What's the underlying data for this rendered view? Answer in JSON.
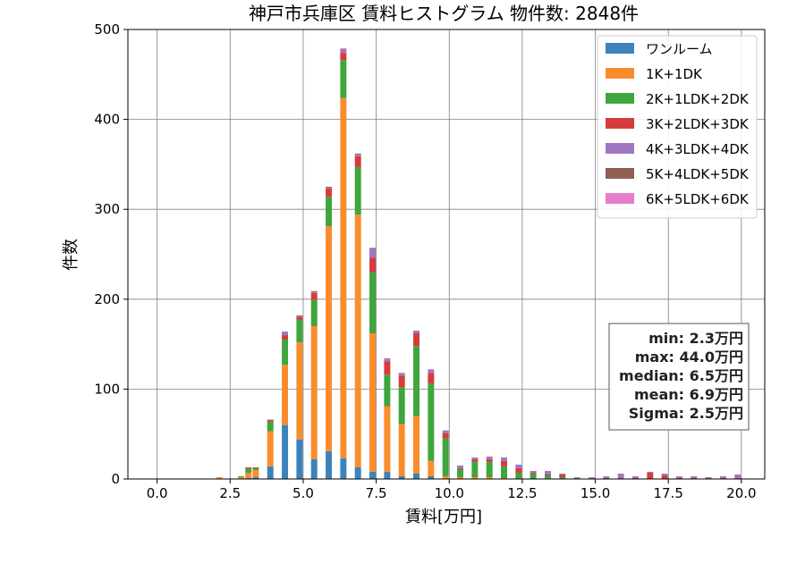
{
  "chart_data": {
    "type": "bar",
    "stacked": true,
    "title": "神戸市兵庫区 賃料ヒストグラム 物件数: 2848件",
    "xlabel": "賃料[万円]",
    "ylabel": "件数",
    "xlim": [
      -1.0,
      20.8
    ],
    "ylim": [
      0,
      500
    ],
    "xticks": [
      0,
      2.5,
      5,
      7.5,
      10,
      12.5,
      15,
      17.5,
      20
    ],
    "xtick_labels": [
      "0.0",
      "2.5",
      "5.0",
      "7.5",
      "10.0",
      "12.5",
      "15.0",
      "17.5",
      "20.0"
    ],
    "yticks": [
      0,
      100,
      200,
      300,
      400,
      500
    ],
    "ytick_labels": [
      "0",
      "100",
      "200",
      "300",
      "400",
      "500"
    ],
    "grid": true,
    "legend_position": "top-right",
    "bin_width": 0.25,
    "x": [
      2.0,
      2.5,
      2.75,
      3.0,
      3.25,
      3.5,
      3.75,
      4.0,
      4.25,
      4.5,
      4.75,
      5.0,
      5.25,
      5.5,
      5.75,
      6.0,
      6.25,
      6.5,
      6.75,
      7.0,
      7.25,
      7.5,
      7.75,
      8.0,
      8.25,
      8.5,
      8.75,
      9.0,
      9.25,
      9.5,
      9.75,
      10.0,
      10.25,
      10.5,
      10.75,
      11.0,
      11.25,
      11.5,
      11.75,
      12.0,
      12.25,
      12.5,
      12.75,
      13.0,
      13.25,
      13.5,
      13.75,
      14.0,
      14.25,
      14.5,
      14.75,
      15.0,
      15.25,
      15.5,
      15.75,
      16.0,
      16.25,
      16.5,
      16.75,
      17.0,
      17.25,
      17.5,
      17.75,
      18.0,
      18.25,
      18.5,
      18.75,
      19.0,
      19.25,
      19.5,
      19.75,
      20.0
    ],
    "series": [
      {
        "name": "ワンルーム",
        "color": "#3b83bd",
        "values": [
          0,
          0,
          0,
          1,
          2,
          0,
          14,
          0,
          60,
          0,
          44,
          0,
          22,
          0,
          31,
          0,
          23,
          0,
          13,
          0,
          8,
          0,
          8,
          0,
          3,
          0,
          6,
          0,
          3,
          0,
          0,
          0,
          0,
          0,
          0,
          0,
          0,
          0,
          0,
          0,
          0,
          0,
          0,
          0,
          0,
          0,
          0,
          0,
          0,
          0,
          0,
          0,
          0,
          0,
          0,
          0,
          0,
          0,
          0,
          0,
          0,
          0,
          0,
          0,
          0,
          0,
          0,
          0,
          0,
          0,
          0,
          0
        ]
      },
      {
        "name": "1K+1DK",
        "color": "#fb8c2c",
        "values": [
          2,
          0,
          2,
          6,
          8,
          0,
          39,
          0,
          67,
          0,
          108,
          0,
          148,
          0,
          250,
          0,
          401,
          0,
          281,
          0,
          154,
          0,
          73,
          0,
          58,
          0,
          64,
          0,
          17,
          0,
          3,
          0,
          2,
          0,
          2,
          0,
          2,
          0,
          1,
          0,
          0,
          0,
          0,
          0,
          0,
          0,
          0,
          0,
          0,
          0,
          0,
          0,
          0,
          0,
          0,
          0,
          0,
          0,
          0,
          0,
          0,
          0,
          0,
          0,
          0,
          0,
          0,
          0,
          0,
          0,
          0,
          0
        ]
      },
      {
        "name": "2K+1LDK+2DK",
        "color": "#3fa53d",
        "values": [
          0,
          0,
          1,
          5,
          2,
          0,
          11,
          0,
          28,
          0,
          25,
          0,
          29,
          0,
          33,
          0,
          42,
          0,
          53,
          0,
          68,
          0,
          35,
          0,
          41,
          0,
          78,
          0,
          86,
          0,
          42,
          0,
          9,
          0,
          17,
          0,
          17,
          0,
          13,
          0,
          7,
          0,
          6,
          0,
          4,
          0,
          2,
          0,
          1,
          0,
          0,
          0,
          0,
          0,
          0,
          0,
          0,
          0,
          0,
          0,
          0,
          0,
          0,
          0,
          0,
          0,
          0,
          0,
          0,
          0,
          0,
          0
        ]
      },
      {
        "name": "3K+2LDK+3DK",
        "color": "#d63b3d",
        "values": [
          0,
          0,
          0,
          1,
          1,
          0,
          2,
          0,
          5,
          0,
          3,
          0,
          8,
          0,
          9,
          0,
          8,
          0,
          12,
          0,
          16,
          0,
          15,
          0,
          13,
          0,
          14,
          0,
          12,
          0,
          6,
          0,
          1,
          0,
          3,
          0,
          3,
          0,
          6,
          0,
          5,
          0,
          1,
          0,
          1,
          0,
          3,
          0,
          0,
          0,
          0,
          0,
          1,
          0,
          1,
          0,
          1,
          0,
          7,
          0,
          4,
          0,
          1,
          0,
          1,
          0,
          1,
          0,
          1,
          0,
          1,
          0
        ]
      },
      {
        "name": "4K+3LDK+4DK",
        "color": "#9f77c3",
        "values": [
          0,
          0,
          0,
          0,
          0,
          0,
          0,
          0,
          4,
          0,
          1,
          0,
          1,
          0,
          1,
          0,
          3,
          0,
          2,
          0,
          10,
          0,
          2,
          0,
          3,
          0,
          3,
          0,
          4,
          0,
          3,
          0,
          3,
          0,
          2,
          0,
          3,
          0,
          4,
          0,
          4,
          0,
          2,
          0,
          4,
          0,
          1,
          0,
          1,
          0,
          2,
          0,
          2,
          0,
          5,
          0,
          2,
          0,
          1,
          0,
          2,
          0,
          2,
          0,
          2,
          0,
          1,
          0,
          2,
          0,
          4,
          0
        ]
      },
      {
        "name": "5K+4LDK+5DK",
        "color": "#8f5e52",
        "values": [
          0,
          0,
          0,
          0,
          0,
          0,
          0,
          0,
          0,
          0,
          1,
          0,
          1,
          0,
          1,
          0,
          1,
          0,
          1,
          0,
          1,
          0,
          1,
          0,
          0,
          0,
          0,
          0,
          0,
          0,
          0,
          0,
          0,
          0,
          0,
          0,
          0,
          0,
          0,
          0,
          0,
          0,
          0,
          0,
          0,
          0,
          0,
          0,
          0,
          0,
          0,
          0,
          0,
          0,
          0,
          0,
          0,
          0,
          0,
          0,
          0,
          0,
          0,
          0,
          0,
          0,
          0,
          0,
          0,
          0,
          0,
          0
        ]
      },
      {
        "name": "6K+5LDK+6DK",
        "color": "#e57dc8",
        "values": [
          0,
          0,
          0,
          0,
          0,
          0,
          0,
          0,
          0,
          0,
          0,
          0,
          0,
          0,
          0,
          0,
          1,
          0,
          0,
          0,
          0,
          0,
          0,
          0,
          0,
          0,
          0,
          0,
          0,
          0,
          0,
          0,
          0,
          0,
          0,
          0,
          0,
          0,
          0,
          0,
          0,
          0,
          0,
          0,
          0,
          0,
          0,
          0,
          0,
          0,
          0,
          0,
          0,
          0,
          0,
          0,
          0,
          0,
          0,
          0,
          0,
          0,
          0,
          0,
          0,
          0,
          0,
          0,
          0,
          0,
          0,
          0
        ]
      }
    ],
    "stats": [
      "min: 2.3万円",
      "max: 44.0万円",
      "median: 6.5万円",
      "mean: 6.9万円",
      "Sigma: 2.5万円"
    ]
  }
}
